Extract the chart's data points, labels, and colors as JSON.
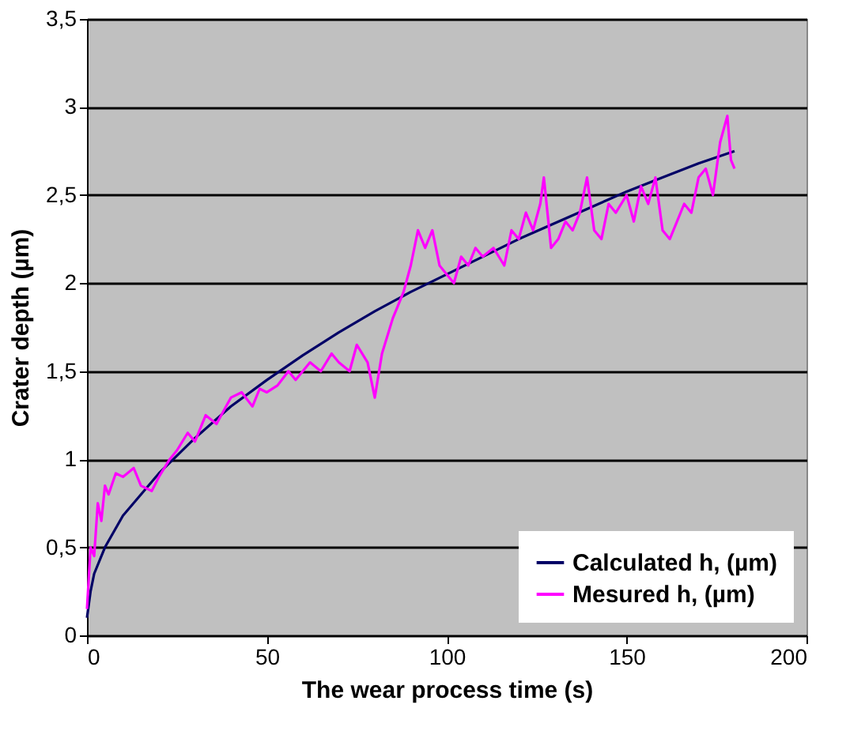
{
  "chart_data": {
    "type": "line",
    "xlabel": "The wear process time (s)",
    "ylabel": "Crater depth (µm)",
    "xlim": [
      0,
      200
    ],
    "xticks": [
      0,
      50,
      100,
      150,
      200
    ],
    "ylim": [
      0,
      3.5
    ],
    "yticks": [
      {
        "value": 0,
        "label": "0"
      },
      {
        "value": 0.5,
        "label": "0,5"
      },
      {
        "value": 1,
        "label": "1"
      },
      {
        "value": 1.5,
        "label": "1,5"
      },
      {
        "value": 2,
        "label": "2"
      },
      {
        "value": 2.5,
        "label": "2,5"
      },
      {
        "value": 3,
        "label": "3"
      },
      {
        "value": 3.5,
        "label": "3,5"
      }
    ],
    "grid": "y",
    "legend": "bottom right",
    "marker": "none",
    "line_style": "solid",
    "series": [
      {
        "name": "Calculated h, (µm)",
        "color": "#000066",
        "x": [
          0,
          1,
          2,
          5,
          10,
          20,
          30,
          40,
          50,
          60,
          70,
          80,
          90,
          100,
          110,
          120,
          130,
          140,
          150,
          160,
          170,
          180
        ],
        "values": [
          0.1,
          0.25,
          0.35,
          0.5,
          0.68,
          0.92,
          1.12,
          1.3,
          1.45,
          1.59,
          1.72,
          1.84,
          1.95,
          2.05,
          2.15,
          2.25,
          2.34,
          2.43,
          2.52,
          2.6,
          2.68,
          2.75
        ]
      },
      {
        "name": "Mesured h, (µm)",
        "color": "#ff00ff",
        "x": [
          0,
          1,
          2,
          3,
          4,
          5,
          6,
          8,
          10,
          13,
          15,
          18,
          20,
          23,
          25,
          28,
          30,
          33,
          36,
          40,
          43,
          46,
          48,
          50,
          53,
          56,
          58,
          62,
          65,
          68,
          70,
          73,
          75,
          78,
          80,
          82,
          85,
          88,
          90,
          92,
          94,
          96,
          98,
          100,
          102,
          104,
          106,
          108,
          110,
          113,
          116,
          118,
          120,
          122,
          124,
          126,
          127,
          129,
          131,
          133,
          135,
          137,
          139,
          141,
          143,
          145,
          147,
          150,
          152,
          154,
          156,
          158,
          160,
          162,
          164,
          166,
          168,
          170,
          172,
          174,
          176,
          178,
          179,
          180
        ],
        "values": [
          0.15,
          0.5,
          0.45,
          0.75,
          0.65,
          0.85,
          0.8,
          0.92,
          0.9,
          0.95,
          0.85,
          0.82,
          0.9,
          1.0,
          1.05,
          1.15,
          1.1,
          1.25,
          1.2,
          1.35,
          1.38,
          1.3,
          1.4,
          1.38,
          1.42,
          1.5,
          1.45,
          1.55,
          1.5,
          1.6,
          1.55,
          1.5,
          1.65,
          1.55,
          1.35,
          1.6,
          1.8,
          1.95,
          2.1,
          2.3,
          2.2,
          2.3,
          2.1,
          2.05,
          2.0,
          2.15,
          2.1,
          2.2,
          2.15,
          2.2,
          2.1,
          2.3,
          2.25,
          2.4,
          2.3,
          2.45,
          2.6,
          2.2,
          2.25,
          2.35,
          2.3,
          2.4,
          2.6,
          2.3,
          2.25,
          2.45,
          2.4,
          2.5,
          2.35,
          2.55,
          2.45,
          2.6,
          2.3,
          2.25,
          2.35,
          2.45,
          2.4,
          2.6,
          2.65,
          2.5,
          2.8,
          2.95,
          2.7,
          2.65
        ]
      }
    ]
  }
}
